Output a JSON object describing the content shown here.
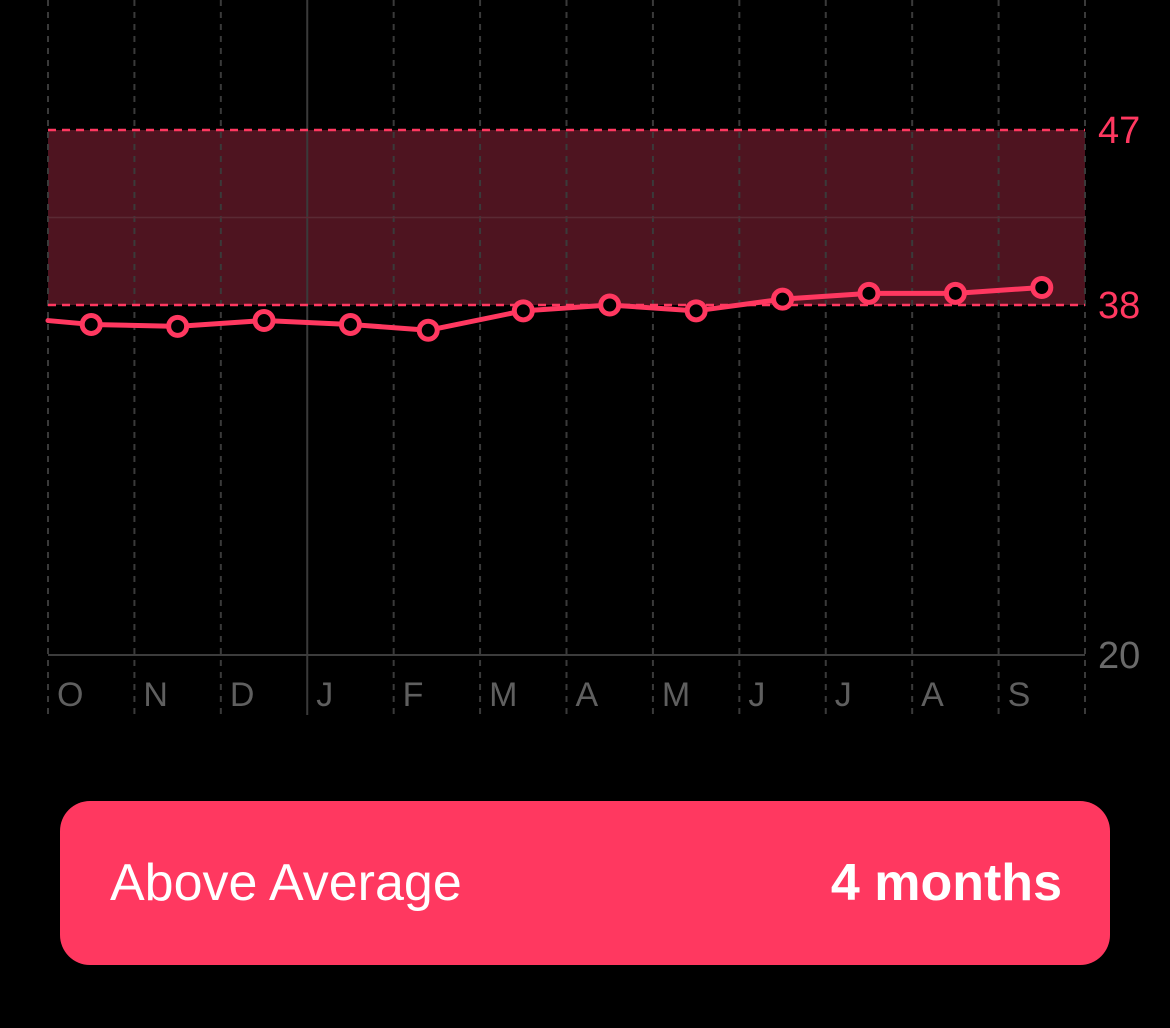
{
  "colors": {
    "accent": "#ff3860",
    "band_fill": "#4e1420",
    "grid_dashed": "#3a3a3a",
    "grid_solid": "#3c3c3c",
    "axis_label": "#5f5f5f",
    "background": "#000000"
  },
  "chart_data": {
    "type": "line",
    "x_tick_labels": [
      "O",
      "N",
      "D",
      "J",
      "F",
      "M",
      "A",
      "M",
      "J",
      "J",
      "A",
      "S"
    ],
    "x": [
      0.5,
      1.5,
      2.5,
      3.5,
      4.4,
      5.5,
      6.5,
      7.5,
      8.5,
      9.5,
      10.5,
      11.5
    ],
    "series": [
      {
        "values": [
          37.0,
          36.9,
          37.2,
          37.0,
          36.7,
          37.7,
          38.0,
          37.7,
          38.3,
          38.6,
          38.6,
          38.9
        ]
      }
    ],
    "line_start_value": 37.2,
    "y_tick_labels": [
      "47",
      "38",
      "20"
    ],
    "y_ticks": [
      47,
      38,
      20
    ],
    "ylim": [
      20,
      47
    ],
    "reference_band": [
      38,
      47
    ],
    "grid": true
  },
  "summary": {
    "label": "Above Average",
    "value": "4 months"
  }
}
